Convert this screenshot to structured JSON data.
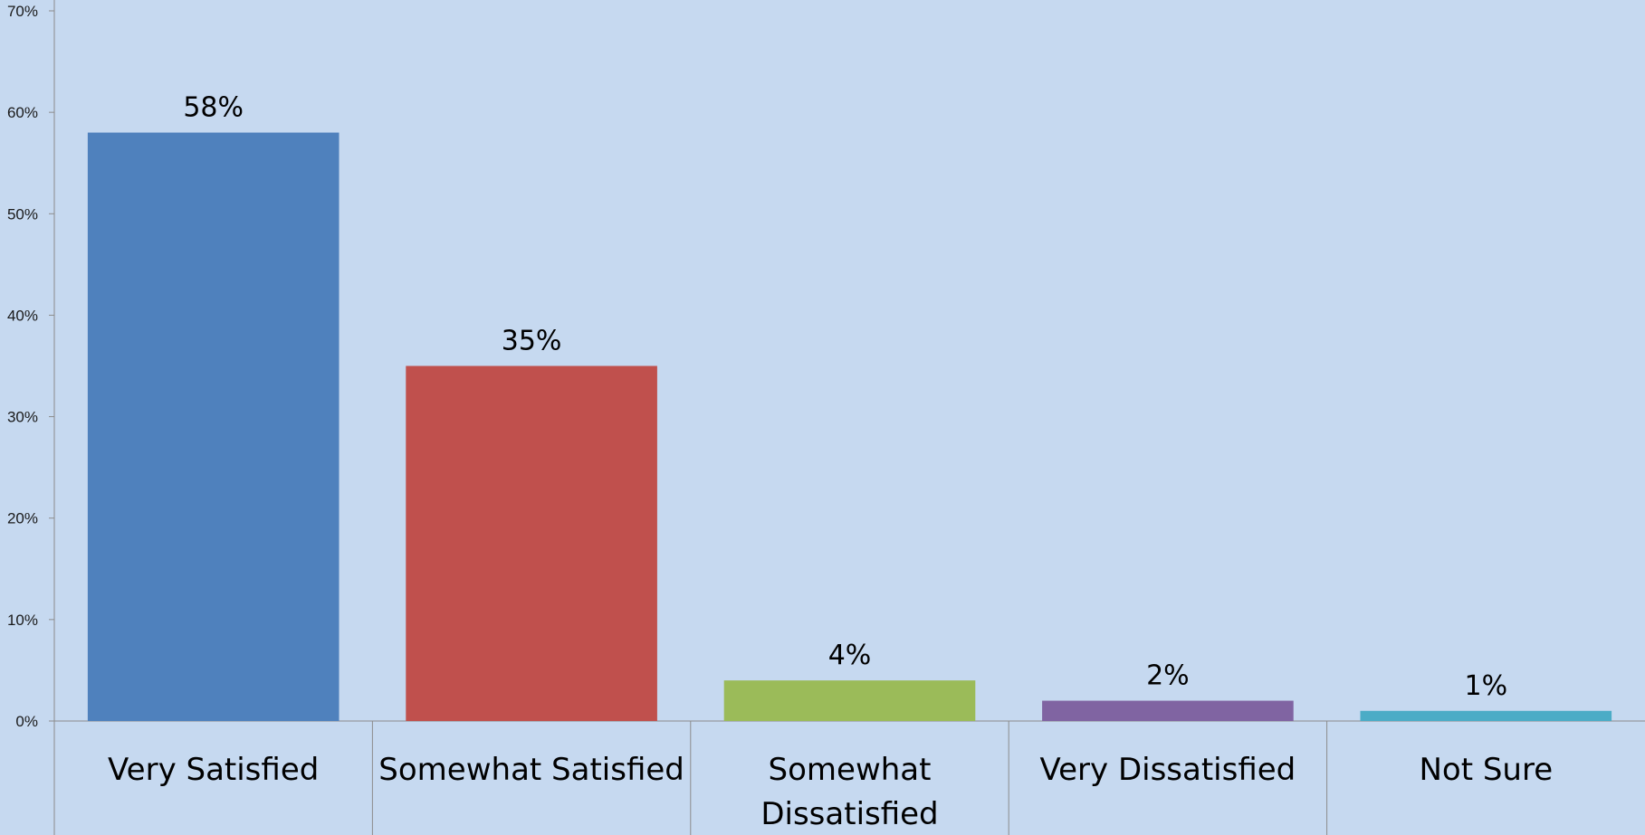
{
  "chart_data": {
    "type": "bar",
    "title": "",
    "xlabel": "",
    "ylabel": "",
    "categories": [
      [
        "Very Satisfied"
      ],
      [
        "Somewhat Satisfied"
      ],
      [
        "Somewhat",
        "Dissatisfied"
      ],
      [
        "Very Dissatisfied"
      ],
      [
        "Not Sure"
      ]
    ],
    "values": [
      58,
      35,
      4,
      2,
      1
    ],
    "data_labels": [
      "58%",
      "35%",
      "4%",
      "2%",
      "1%"
    ],
    "bar_colors": [
      "#4f81bd",
      "#c0504d",
      "#9bbb59",
      "#8064a2",
      "#4bacc6"
    ],
    "ylim": [
      0,
      70
    ],
    "yticks": [
      0,
      10,
      20,
      30,
      40,
      50,
      60,
      70
    ],
    "ytick_labels": [
      "0%",
      "10%",
      "20%",
      "30%",
      "40%",
      "50%",
      "60%",
      "70%"
    ],
    "grid": false,
    "legend": "none",
    "background_color": "#c6d9f0"
  }
}
